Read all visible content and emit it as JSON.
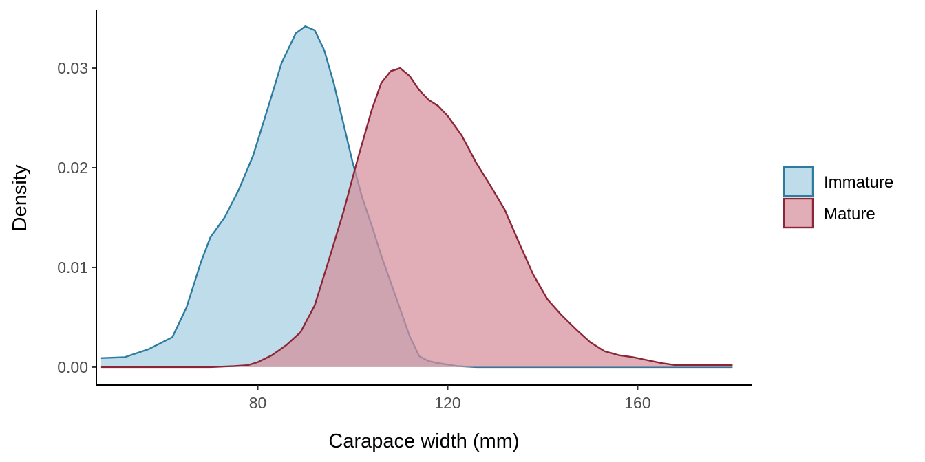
{
  "chart_data": {
    "type": "area",
    "title": "",
    "xlabel": "Carapace width (mm)",
    "ylabel": "Density",
    "xlim": [
      46,
      184
    ],
    "ylim": [
      -0.0018,
      0.0358
    ],
    "xticks": [
      80,
      120,
      160
    ],
    "yticks": [
      0.0,
      0.01,
      0.02,
      0.03
    ],
    "ytick_labels": [
      "0.00",
      "0.01",
      "0.02",
      "0.03"
    ],
    "grid": false,
    "legend_position": "right",
    "series": [
      {
        "name": "Immature",
        "fill": "#a6cfe2",
        "stroke": "#2e7ba0",
        "x": [
          47,
          52,
          57,
          62,
          65,
          68,
          70,
          73,
          76,
          79,
          82,
          85,
          88,
          90,
          92,
          94,
          96,
          98,
          100,
          102,
          104,
          106,
          108,
          110,
          112,
          114,
          116,
          118,
          122,
          126,
          130,
          140,
          150,
          160,
          170,
          180
        ],
        "y": [
          0.0009,
          0.001,
          0.0018,
          0.003,
          0.006,
          0.0105,
          0.013,
          0.015,
          0.0178,
          0.0212,
          0.0258,
          0.0305,
          0.0335,
          0.0342,
          0.0338,
          0.0318,
          0.0285,
          0.0245,
          0.0205,
          0.017,
          0.0142,
          0.0112,
          0.0085,
          0.0058,
          0.0031,
          0.0011,
          0.0006,
          0.0004,
          0.0001,
          0.0,
          0.0,
          0.0,
          0.0,
          0.0,
          0.0,
          0.0
        ]
      },
      {
        "name": "Mature",
        "fill": "#d58f9b",
        "stroke": "#8b2638",
        "x": [
          47,
          60,
          70,
          75,
          78,
          80,
          83,
          86,
          89,
          92,
          95,
          98,
          101,
          104,
          106,
          108,
          110,
          112,
          114,
          116,
          118,
          120,
          123,
          126,
          129,
          132,
          135,
          138,
          141,
          144,
          147,
          150,
          153,
          156,
          159,
          162,
          165,
          168,
          172,
          176,
          180
        ],
        "y": [
          0.0,
          0.0,
          0.0,
          0.0001,
          0.0002,
          0.0005,
          0.0012,
          0.0022,
          0.0035,
          0.0062,
          0.0108,
          0.0155,
          0.0208,
          0.0258,
          0.0285,
          0.0297,
          0.03,
          0.0292,
          0.0278,
          0.0268,
          0.0262,
          0.0252,
          0.0232,
          0.0205,
          0.0182,
          0.0158,
          0.0125,
          0.0093,
          0.0068,
          0.0052,
          0.0038,
          0.0025,
          0.0016,
          0.0012,
          0.001,
          0.0007,
          0.0004,
          0.0002,
          0.0002,
          0.0002,
          0.0002
        ]
      }
    ]
  }
}
